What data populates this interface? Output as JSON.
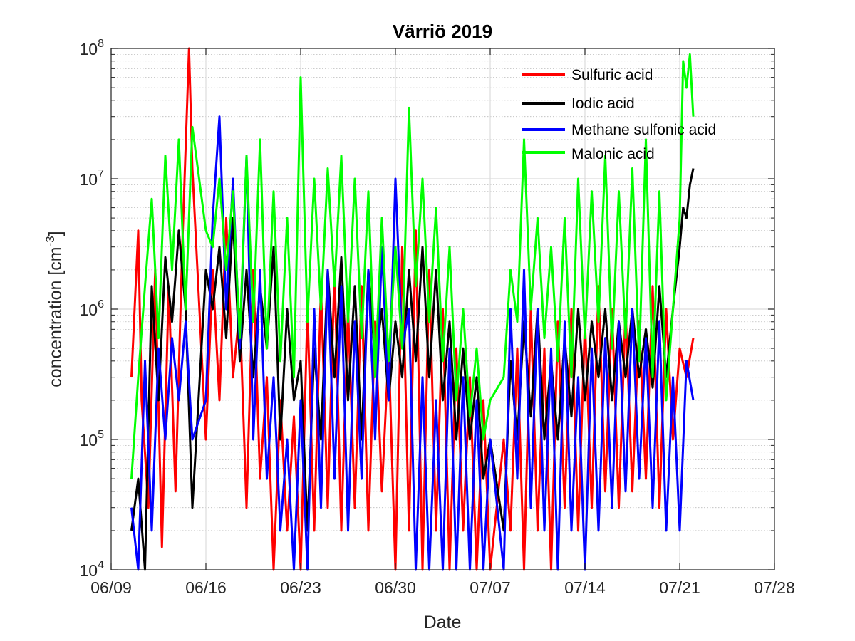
{
  "chart_data": {
    "type": "line",
    "title": "Värriö 2019",
    "xlabel": "Date",
    "ylabel": "concentration [cm",
    "ylabel_superscript": "-3",
    "ylabel_suffix": "]",
    "y_scale": "log",
    "ylim": [
      10000,
      100000000
    ],
    "y_ticks": [
      {
        "value": 10000,
        "base": "10",
        "exp": "4"
      },
      {
        "value": 100000,
        "base": "10",
        "exp": "5"
      },
      {
        "value": 1000000,
        "base": "10",
        "exp": "6"
      },
      {
        "value": 10000000,
        "base": "10",
        "exp": "7"
      },
      {
        "value": 100000000,
        "base": "10",
        "exp": "8"
      }
    ],
    "xlim": [
      "2019-06-09",
      "2019-07-28"
    ],
    "x_ticks": [
      {
        "date": "2019-06-09",
        "label": "06/09"
      },
      {
        "date": "2019-06-16",
        "label": "06/16"
      },
      {
        "date": "2019-06-23",
        "label": "06/23"
      },
      {
        "date": "2019-06-30",
        "label": "06/30"
      },
      {
        "date": "2019-07-07",
        "label": "07/07"
      },
      {
        "date": "2019-07-14",
        "label": "07/14"
      },
      {
        "date": "2019-07-21",
        "label": "07/21"
      },
      {
        "date": "2019-07-28",
        "label": "07/28"
      }
    ],
    "grid": true,
    "minor_grid": true,
    "legend_position": "top-right",
    "series": [
      {
        "name": "Sulfuric acid",
        "color": "#ff0000",
        "x": [
          "2019-06-10T12:00",
          "2019-06-11T00:00",
          "2019-06-11T06:00",
          "2019-06-11T18:00",
          "2019-06-12T06:00",
          "2019-06-12T18:00",
          "2019-06-13T06:00",
          "2019-06-13T18:00",
          "2019-06-14T06:00",
          "2019-06-14T18:00",
          "2019-06-15T00:00",
          "2019-06-16T00:00",
          "2019-06-16T12:00",
          "2019-06-17T00:00",
          "2019-06-17T12:00",
          "2019-06-18T00:00",
          "2019-06-18T12:00",
          "2019-06-19T00:00",
          "2019-06-19T12:00",
          "2019-06-20T00:00",
          "2019-06-20T12:00",
          "2019-06-21T00:00",
          "2019-06-21T12:00",
          "2019-06-22T00:00",
          "2019-06-22T12:00",
          "2019-06-23T00:00",
          "2019-06-23T12:00",
          "2019-06-24T00:00",
          "2019-06-24T12:00",
          "2019-06-25T00:00",
          "2019-06-25T12:00",
          "2019-06-26T00:00",
          "2019-06-26T12:00",
          "2019-06-27T00:00",
          "2019-06-27T12:00",
          "2019-06-28T00:00",
          "2019-06-28T12:00",
          "2019-06-29T00:00",
          "2019-06-29T12:00",
          "2019-06-30T00:00",
          "2019-06-30T12:00",
          "2019-07-01T00:00",
          "2019-07-01T12:00",
          "2019-07-02T00:00",
          "2019-07-02T12:00",
          "2019-07-03T00:00",
          "2019-07-03T12:00",
          "2019-07-04T00:00",
          "2019-07-04T12:00",
          "2019-07-05T00:00",
          "2019-07-05T12:00",
          "2019-07-06T00:00",
          "2019-07-06T12:00",
          "2019-07-07T00:00",
          "2019-07-08T00:00",
          "2019-07-08T12:00",
          "2019-07-09T00:00",
          "2019-07-09T12:00",
          "2019-07-10T00:00",
          "2019-07-10T12:00",
          "2019-07-11T00:00",
          "2019-07-11T12:00",
          "2019-07-12T00:00",
          "2019-07-12T12:00",
          "2019-07-13T00:00",
          "2019-07-13T12:00",
          "2019-07-14T00:00",
          "2019-07-14T12:00",
          "2019-07-15T00:00",
          "2019-07-15T12:00",
          "2019-07-16T00:00",
          "2019-07-16T12:00",
          "2019-07-17T00:00",
          "2019-07-17T12:00",
          "2019-07-18T00:00",
          "2019-07-18T12:00",
          "2019-07-19T00:00",
          "2019-07-19T12:00",
          "2019-07-20T00:00",
          "2019-07-20T12:00",
          "2019-07-21T00:00",
          "2019-07-21T12:00",
          "2019-07-22T00:00"
        ],
        "y": [
          300000,
          4000000,
          200000,
          30000,
          2000000,
          15000,
          1500000,
          40000,
          3000000,
          100000000,
          12000000,
          100000,
          2000000,
          200000,
          5000000,
          300000,
          1000000,
          30000,
          2000000,
          50000,
          300000,
          10000,
          200000,
          20000,
          150000,
          10000,
          1000000,
          20000,
          1500000,
          30000,
          2000000,
          20000,
          1000000,
          30000,
          1500000,
          20000,
          800000,
          40000,
          500000,
          10000,
          3000000,
          20000,
          4000000,
          10000,
          2000000,
          20000,
          1000000,
          10000,
          500000,
          20000,
          300000,
          10000,
          200000,
          10000,
          100000,
          20000,
          500000,
          10000,
          1000000,
          20000,
          500000,
          10000,
          800000,
          30000,
          1000000,
          20000,
          800000,
          30000,
          1500000,
          40000,
          1000000,
          30000,
          1000000,
          40000,
          800000,
          50000,
          1500000,
          30000,
          1000000,
          100000,
          500000,
          300000,
          600000
        ]
      },
      {
        "name": "Iodic acid",
        "color": "#000000",
        "x": [
          "2019-06-10T12:00",
          "2019-06-11T00:00",
          "2019-06-11T12:00",
          "2019-06-12T00:00",
          "2019-06-12T12:00",
          "2019-06-13T00:00",
          "2019-06-13T12:00",
          "2019-06-14T00:00",
          "2019-06-14T12:00",
          "2019-06-15T00:00",
          "2019-06-16T00:00",
          "2019-06-16T12:00",
          "2019-06-17T00:00",
          "2019-06-17T12:00",
          "2019-06-18T00:00",
          "2019-06-18T12:00",
          "2019-06-19T00:00",
          "2019-06-19T12:00",
          "2019-06-20T00:00",
          "2019-06-20T12:00",
          "2019-06-21T00:00",
          "2019-06-21T12:00",
          "2019-06-22T00:00",
          "2019-06-22T12:00",
          "2019-06-23T00:00",
          "2019-06-23T12:00",
          "2019-06-24T00:00",
          "2019-06-24T12:00",
          "2019-06-25T00:00",
          "2019-06-25T12:00",
          "2019-06-26T00:00",
          "2019-06-26T12:00",
          "2019-06-27T00:00",
          "2019-06-27T12:00",
          "2019-06-28T00:00",
          "2019-06-28T12:00",
          "2019-06-29T00:00",
          "2019-06-29T12:00",
          "2019-06-30T00:00",
          "2019-06-30T12:00",
          "2019-07-01T00:00",
          "2019-07-01T12:00",
          "2019-07-02T00:00",
          "2019-07-02T12:00",
          "2019-07-03T00:00",
          "2019-07-03T12:00",
          "2019-07-04T00:00",
          "2019-07-04T12:00",
          "2019-07-05T00:00",
          "2019-07-05T12:00",
          "2019-07-06T00:00",
          "2019-07-06T12:00",
          "2019-07-07T00:00",
          "2019-07-08T00:00",
          "2019-07-08T12:00",
          "2019-07-09T00:00",
          "2019-07-09T12:00",
          "2019-07-10T00:00",
          "2019-07-10T12:00",
          "2019-07-11T00:00",
          "2019-07-11T12:00",
          "2019-07-12T00:00",
          "2019-07-12T12:00",
          "2019-07-13T00:00",
          "2019-07-13T12:00",
          "2019-07-14T00:00",
          "2019-07-14T12:00",
          "2019-07-15T00:00",
          "2019-07-15T12:00",
          "2019-07-16T00:00",
          "2019-07-16T12:00",
          "2019-07-17T00:00",
          "2019-07-17T12:00",
          "2019-07-18T00:00",
          "2019-07-18T12:00",
          "2019-07-19T00:00",
          "2019-07-19T12:00",
          "2019-07-20T00:00",
          "2019-07-20T12:00",
          "2019-07-21T00:00",
          "2019-07-21T06:00",
          "2019-07-21T12:00",
          "2019-07-21T18:00",
          "2019-07-22T00:00"
        ],
        "y": [
          20000,
          50000,
          10000,
          1500000,
          200000,
          2500000,
          800000,
          4000000,
          1000000,
          30000,
          2000000,
          1000000,
          3000000,
          600000,
          5000000,
          400000,
          2000000,
          300000,
          1500000,
          500000,
          3000000,
          100000,
          1000000,
          200000,
          400000,
          20000,
          500000,
          100000,
          2000000,
          300000,
          2500000,
          200000,
          1500000,
          100000,
          2000000,
          400000,
          1000000,
          200000,
          800000,
          300000,
          2000000,
          400000,
          3000000,
          300000,
          2000000,
          200000,
          800000,
          100000,
          500000,
          100000,
          300000,
          50000,
          100000,
          20000,
          400000,
          100000,
          800000,
          150000,
          1000000,
          100000,
          400000,
          100000,
          600000,
          150000,
          1000000,
          200000,
          800000,
          300000,
          1000000,
          200000,
          800000,
          300000,
          1000000,
          300000,
          700000,
          250000,
          1500000,
          300000,
          1000000,
          3000000,
          6000000,
          5000000,
          9000000,
          12000000
        ]
      },
      {
        "name": "Methane sulfonic acid",
        "color": "#0000ff",
        "x": [
          "2019-06-10T12:00",
          "2019-06-11T00:00",
          "2019-06-11T12:00",
          "2019-06-12T00:00",
          "2019-06-12T12:00",
          "2019-06-13T00:00",
          "2019-06-13T12:00",
          "2019-06-14T00:00",
          "2019-06-14T12:00",
          "2019-06-15T00:00",
          "2019-06-16T00:00",
          "2019-06-16T12:00",
          "2019-06-17T00:00",
          "2019-06-17T12:00",
          "2019-06-18T00:00",
          "2019-06-18T12:00",
          "2019-06-19T00:00",
          "2019-06-19T12:00",
          "2019-06-20T00:00",
          "2019-06-20T12:00",
          "2019-06-21T00:00",
          "2019-06-21T12:00",
          "2019-06-22T00:00",
          "2019-06-22T12:00",
          "2019-06-23T00:00",
          "2019-06-23T12:00",
          "2019-06-24T00:00",
          "2019-06-24T12:00",
          "2019-06-25T00:00",
          "2019-06-25T12:00",
          "2019-06-26T00:00",
          "2019-06-26T12:00",
          "2019-06-27T00:00",
          "2019-06-27T12:00",
          "2019-06-28T00:00",
          "2019-06-28T12:00",
          "2019-06-29T00:00",
          "2019-06-29T12:00",
          "2019-06-30T00:00",
          "2019-06-30T12:00",
          "2019-07-01T00:00",
          "2019-07-01T12:00",
          "2019-07-02T00:00",
          "2019-07-02T12:00",
          "2019-07-03T00:00",
          "2019-07-03T12:00",
          "2019-07-04T00:00",
          "2019-07-04T12:00",
          "2019-07-05T00:00",
          "2019-07-05T12:00",
          "2019-07-06T00:00",
          "2019-07-06T12:00",
          "2019-07-07T00:00",
          "2019-07-08T00:00",
          "2019-07-08T12:00",
          "2019-07-09T00:00",
          "2019-07-09T12:00",
          "2019-07-10T00:00",
          "2019-07-10T12:00",
          "2019-07-11T00:00",
          "2019-07-11T12:00",
          "2019-07-12T00:00",
          "2019-07-12T12:00",
          "2019-07-13T00:00",
          "2019-07-13T12:00",
          "2019-07-14T00:00",
          "2019-07-14T12:00",
          "2019-07-15T00:00",
          "2019-07-15T12:00",
          "2019-07-16T00:00",
          "2019-07-16T12:00",
          "2019-07-17T00:00",
          "2019-07-17T12:00",
          "2019-07-18T00:00",
          "2019-07-18T12:00",
          "2019-07-19T00:00",
          "2019-07-19T12:00",
          "2019-07-20T00:00",
          "2019-07-20T12:00",
          "2019-07-21T00:00",
          "2019-07-21T12:00",
          "2019-07-22T00:00"
        ],
        "y": [
          30000,
          10000,
          400000,
          20000,
          500000,
          100000,
          600000,
          200000,
          800000,
          100000,
          200000,
          5000000,
          30000000,
          1000000,
          10000000,
          500000,
          15000000,
          100000,
          2000000,
          50000,
          300000,
          20000,
          100000,
          10000,
          200000,
          10000,
          1000000,
          30000,
          2000000,
          50000,
          1500000,
          20000,
          800000,
          50000,
          2000000,
          100000,
          3000000,
          200000,
          10000000,
          500000,
          1000000,
          10000,
          300000,
          10000,
          200000,
          10000,
          500000,
          10000,
          300000,
          10000,
          200000,
          10000,
          100000,
          10000,
          1000000,
          50000,
          2000000,
          30000,
          1000000,
          20000,
          500000,
          10000,
          800000,
          20000,
          300000,
          10000,
          500000,
          20000,
          600000,
          30000,
          800000,
          40000,
          1000000,
          50000,
          600000,
          30000,
          800000,
          20000,
          300000,
          20000,
          400000,
          200000
        ]
      },
      {
        "name": "Malonic acid",
        "color": "#00ff00",
        "x": [
          "2019-06-10T12:00",
          "2019-06-11T00:00",
          "2019-06-11T12:00",
          "2019-06-12T00:00",
          "2019-06-12T12:00",
          "2019-06-13T00:00",
          "2019-06-13T12:00",
          "2019-06-14T00:00",
          "2019-06-14T12:00",
          "2019-06-15T00:00",
          "2019-06-16T00:00",
          "2019-06-16T12:00",
          "2019-06-17T00:00",
          "2019-06-17T12:00",
          "2019-06-18T00:00",
          "2019-06-18T12:00",
          "2019-06-19T00:00",
          "2019-06-19T12:00",
          "2019-06-20T00:00",
          "2019-06-20T12:00",
          "2019-06-21T00:00",
          "2019-06-21T12:00",
          "2019-06-22T00:00",
          "2019-06-22T12:00",
          "2019-06-23T00:00",
          "2019-06-23T12:00",
          "2019-06-24T00:00",
          "2019-06-24T12:00",
          "2019-06-25T00:00",
          "2019-06-25T12:00",
          "2019-06-26T00:00",
          "2019-06-26T12:00",
          "2019-06-27T00:00",
          "2019-06-27T12:00",
          "2019-06-28T00:00",
          "2019-06-28T12:00",
          "2019-06-29T00:00",
          "2019-06-29T12:00",
          "2019-06-30T00:00",
          "2019-06-30T12:00",
          "2019-07-01T00:00",
          "2019-07-01T12:00",
          "2019-07-02T00:00",
          "2019-07-02T12:00",
          "2019-07-03T00:00",
          "2019-07-03T12:00",
          "2019-07-04T00:00",
          "2019-07-04T12:00",
          "2019-07-05T00:00",
          "2019-07-05T12:00",
          "2019-07-06T00:00",
          "2019-07-06T12:00",
          "2019-07-07T00:00",
          "2019-07-08T00:00",
          "2019-07-08T12:00",
          "2019-07-09T00:00",
          "2019-07-09T12:00",
          "2019-07-10T00:00",
          "2019-07-10T12:00",
          "2019-07-11T00:00",
          "2019-07-11T12:00",
          "2019-07-12T00:00",
          "2019-07-12T12:00",
          "2019-07-13T00:00",
          "2019-07-13T12:00",
          "2019-07-14T00:00",
          "2019-07-14T12:00",
          "2019-07-15T00:00",
          "2019-07-15T12:00",
          "2019-07-16T00:00",
          "2019-07-16T12:00",
          "2019-07-17T00:00",
          "2019-07-17T12:00",
          "2019-07-18T00:00",
          "2019-07-18T12:00",
          "2019-07-19T00:00",
          "2019-07-19T12:00",
          "2019-07-20T00:00",
          "2019-07-20T12:00",
          "2019-07-21T00:00",
          "2019-07-21T06:00",
          "2019-07-21T12:00",
          "2019-07-21T18:00",
          "2019-07-22T00:00"
        ],
        "y": [
          50000,
          300000,
          1500000,
          7000000,
          600000,
          15000000,
          2000000,
          20000000,
          1000000,
          25000000,
          4000000,
          3000000,
          10000000,
          2000000,
          8000000,
          600000,
          15000000,
          800000,
          20000000,
          500000,
          8000000,
          400000,
          5000000,
          300000,
          60000000,
          800000,
          10000000,
          1000000,
          12000000,
          1500000,
          15000000,
          800000,
          10000000,
          600000,
          8000000,
          300000,
          5000000,
          400000,
          3000000,
          500000,
          35000000,
          1500000,
          10000000,
          800000,
          6000000,
          400000,
          3000000,
          200000,
          1000000,
          150000,
          500000,
          100000,
          200000,
          300000,
          2000000,
          800000,
          20000000,
          1000000,
          5000000,
          600000,
          3000000,
          400000,
          5000000,
          300000,
          10000000,
          600000,
          8000000,
          800000,
          15000000,
          500000,
          8000000,
          600000,
          12000000,
          400000,
          20000000,
          300000,
          8000000,
          200000,
          1000000,
          5000000,
          80000000,
          50000000,
          90000000,
          30000000
        ]
      }
    ]
  }
}
